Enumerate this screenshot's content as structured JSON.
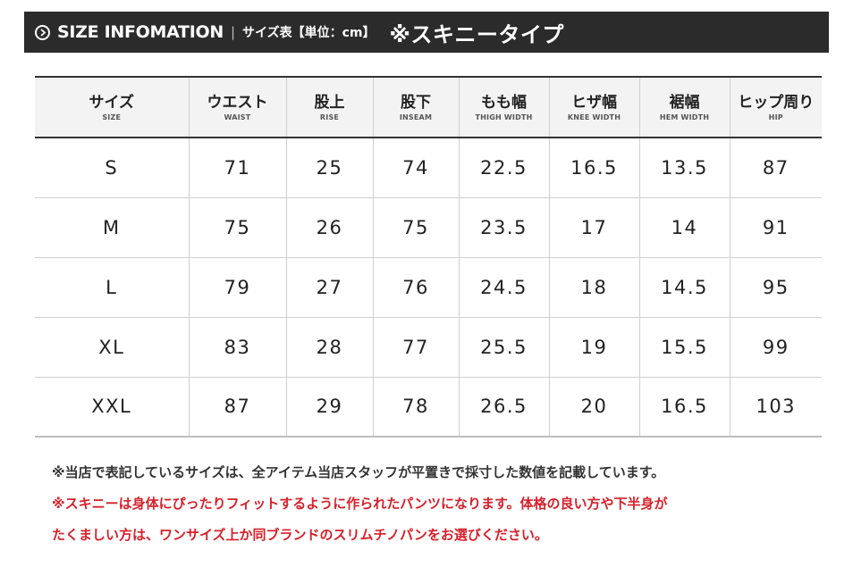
{
  "header": {
    "title": "SIZE INFOMATION",
    "separator": "|",
    "subtitle": "サイズ表【単位：cm】",
    "type_label": "※スキニータイプ",
    "icon": "circle-arrow-right-icon"
  },
  "table": {
    "columns": [
      {
        "jp": "サイズ",
        "en": "SIZE"
      },
      {
        "jp": "ウエスト",
        "en": "WAIST"
      },
      {
        "jp": "股上",
        "en": "RISE"
      },
      {
        "jp": "股下",
        "en": "INSEAM"
      },
      {
        "jp": "もも幅",
        "en": "THIGH WIDTH"
      },
      {
        "jp": "ヒザ幅",
        "en": "KNEE WIDTH"
      },
      {
        "jp": "裾幅",
        "en": "HEM WIDTH"
      },
      {
        "jp": "ヒップ周り",
        "en": "HIP"
      }
    ],
    "rows": [
      [
        "S",
        "71",
        "25",
        "74",
        "22.5",
        "16.5",
        "13.5",
        "87"
      ],
      [
        "M",
        "75",
        "26",
        "75",
        "23.5",
        "17",
        "14",
        "91"
      ],
      [
        "L",
        "79",
        "27",
        "76",
        "24.5",
        "18",
        "14.5",
        "95"
      ],
      [
        "XL",
        "83",
        "28",
        "77",
        "25.5",
        "19",
        "15.5",
        "99"
      ],
      [
        "XXL",
        "87",
        "29",
        "78",
        "26.5",
        "20",
        "16.5",
        "103"
      ]
    ]
  },
  "notes": {
    "line1": "※当店で表記しているサイズは、全アイテム当店スタッフが平置きで採寸した数値を記載しています。",
    "line2": "※スキニーは身体にぴったりフィットするように作られたパンツになります。体格の良い方や下半身が",
    "line3": "たくましい方は、ワンサイズ上か同ブランドのスリムチノパンをお選びください。"
  },
  "colors": {
    "header_bg": "#2b2b2b",
    "note_red": "#d6202a",
    "table_head_bg": "#f3f3f3"
  }
}
